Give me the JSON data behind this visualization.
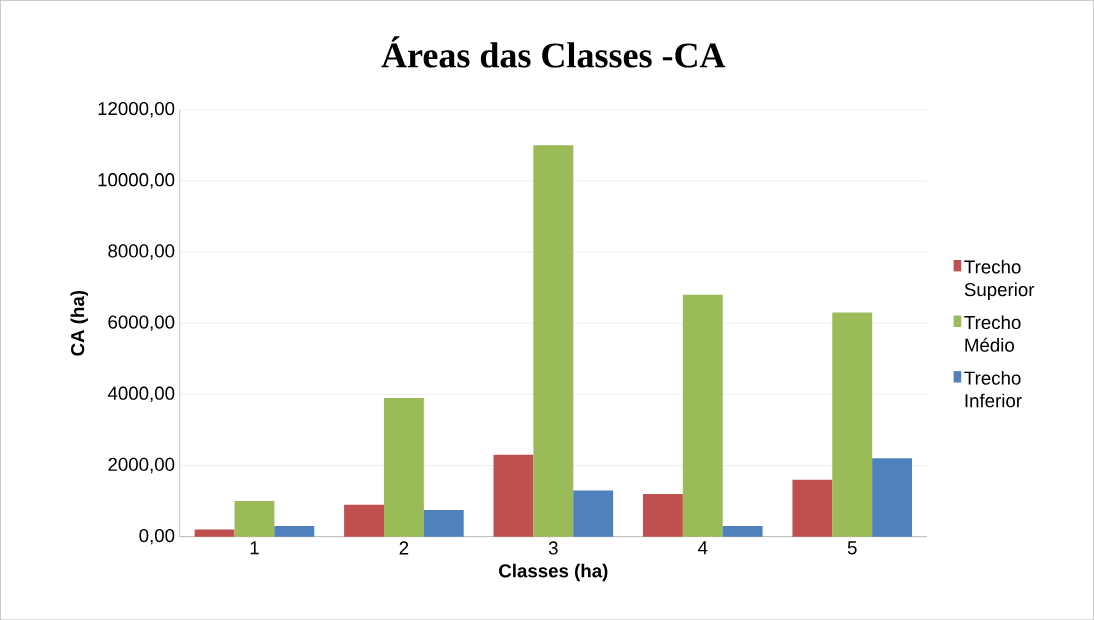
{
  "chart_data": {
    "type": "bar",
    "title": "Áreas das Classes -CA",
    "xlabel": "Classes (ha)",
    "ylabel": "CA (ha)",
    "categories": [
      "1",
      "2",
      "3",
      "4",
      "5"
    ],
    "series": [
      {
        "name": "Trecho Superior",
        "color": "#c0504d",
        "values": [
          200,
          900,
          2300,
          1200,
          1600
        ]
      },
      {
        "name": "Trecho Médio",
        "color": "#9bbb59",
        "values": [
          1000,
          3900,
          11000,
          6800,
          6300
        ]
      },
      {
        "name": "Trecho Inferior",
        "color": "#4f81bd",
        "values": [
          300,
          750,
          1300,
          300,
          2200
        ]
      }
    ],
    "ylim": [
      0,
      12000
    ],
    "yticks": [
      {
        "value": 0,
        "label": "0,00"
      },
      {
        "value": 2000,
        "label": "2000,00"
      },
      {
        "value": 4000,
        "label": "4000,00"
      },
      {
        "value": 6000,
        "label": "6000,00"
      },
      {
        "value": 8000,
        "label": "8000,00"
      },
      {
        "value": 10000,
        "label": "10000,00"
      },
      {
        "value": 12000,
        "label": "12000,00"
      }
    ],
    "grid": "y",
    "legend": "right"
  }
}
